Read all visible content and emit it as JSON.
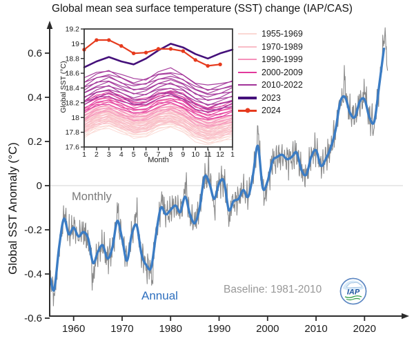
{
  "title": "Global mean sea surface temperature (SST) change (IAP/CAS)",
  "main_chart": {
    "ylabel": "Global SST Anomaly (°C)",
    "monthly_label": "Monthly",
    "annual_label": "Annual",
    "baseline_note": "Baseline: 1981-2010",
    "ytick_labels": [
      "0.6",
      "0.4",
      "0.2",
      "0",
      "-0.2",
      "-0.4",
      "-0.6"
    ],
    "ytick_values": [
      0.6,
      0.4,
      0.2,
      0,
      -0.2,
      -0.4,
      -0.6
    ],
    "xtick_labels": [
      "1960",
      "1970",
      "1980",
      "1990",
      "2000",
      "2010",
      "2020"
    ],
    "xtick_values": [
      1960,
      1970,
      1980,
      1990,
      2000,
      2010,
      2020
    ],
    "colors": {
      "annual": "#3b7cc4",
      "monthly": "#8a8a8a",
      "zero_line": "#dcdcdc",
      "axis": "#2b2b2b",
      "tick_text": "#1b1b1b"
    }
  },
  "chart_data": [
    {
      "id": "main",
      "type": "line",
      "ylabel": "Global SST Anomaly (°C)",
      "xlim": [
        1955,
        2025
      ],
      "ylim": [
        -0.6,
        0.72
      ],
      "xticks": [
        1960,
        1970,
        1980,
        1990,
        2000,
        2010,
        2020
      ],
      "yticks": [
        -0.6,
        -0.4,
        -0.2,
        0,
        0.2,
        0.4,
        0.6
      ],
      "grid": "zero-line-only",
      "series": [
        {
          "name": "Annual",
          "color": "#3b7cc4",
          "width": 3.4,
          "years": [
            1955,
            1956,
            1957,
            1958,
            1959,
            1960,
            1961,
            1962,
            1963,
            1964,
            1965,
            1966,
            1967,
            1968,
            1969,
            1970,
            1971,
            1972,
            1973,
            1974,
            1975,
            1976,
            1977,
            1978,
            1979,
            1980,
            1981,
            1982,
            1983,
            1984,
            1985,
            1986,
            1987,
            1988,
            1989,
            1990,
            1991,
            1992,
            1993,
            1994,
            1995,
            1996,
            1997,
            1998,
            1999,
            2000,
            2001,
            2002,
            2003,
            2004,
            2005,
            2006,
            2007,
            2008,
            2009,
            2010,
            2011,
            2012,
            2013,
            2014,
            2015,
            2016,
            2017,
            2018,
            2019,
            2020,
            2021,
            2022,
            2023,
            2024
          ],
          "values": [
            -0.42,
            -0.47,
            -0.28,
            -0.15,
            -0.22,
            -0.19,
            -0.23,
            -0.21,
            -0.24,
            -0.35,
            -0.3,
            -0.27,
            -0.33,
            -0.28,
            -0.16,
            -0.24,
            -0.34,
            -0.22,
            -0.18,
            -0.31,
            -0.36,
            -0.37,
            -0.22,
            -0.1,
            -0.13,
            -0.11,
            -0.09,
            -0.12,
            -0.05,
            -0.13,
            -0.17,
            -0.1,
            0.04,
            0.01,
            -0.06,
            0.01,
            0.02,
            -0.11,
            -0.07,
            -0.06,
            -0.02,
            -0.05,
            0.05,
            0.18,
            -0.01,
            0.02,
            0.11,
            0.13,
            0.14,
            0.12,
            0.13,
            0.15,
            0.07,
            0.05,
            0.13,
            0.16,
            0.09,
            0.12,
            0.17,
            0.25,
            0.38,
            0.4,
            0.33,
            0.31,
            0.38,
            0.39,
            0.31,
            0.29,
            0.45,
            0.62
          ]
        },
        {
          "name": "Monthly",
          "color": "#8a8a8a",
          "width": 1.1,
          "derivation": "annual-series plus monthly variability (synthesized to match visual amplitude)",
          "noise": {
            "amp1": 0.032,
            "amp2": 0.028,
            "amp3": 0.018,
            "hash_amp": 0.025,
            "sigma": 0.27
          },
          "spikes": [
            [
              1956.3,
              -0.05
            ],
            [
              1958.2,
              0.05
            ],
            [
              1964.0,
              -0.1
            ],
            [
              1969.0,
              0.05
            ],
            [
              1972.9,
              0.07
            ],
            [
              1976.2,
              -0.09
            ],
            [
              1978.3,
              0.05
            ],
            [
              1983.1,
              0.07
            ],
            [
              1987.9,
              0.07
            ],
            [
              1989.0,
              -0.06
            ],
            [
              1992.1,
              -0.06
            ],
            [
              1998.1,
              0.1
            ],
            [
              1999.5,
              -0.07
            ],
            [
              2015.9,
              0.07
            ],
            [
              2020.1,
              0.06
            ],
            [
              2022.0,
              -0.05
            ],
            [
              2024.1,
              0.08
            ],
            [
              2024.8,
              -0.09
            ]
          ],
          "start_year": 1955.0,
          "end_year": 2024.83,
          "clamp": [
            -0.575,
            0.715
          ]
        }
      ]
    },
    {
      "id": "inset",
      "type": "line",
      "ylabel": "Global SST (°C)",
      "xlabel": "Month",
      "ylim": [
        17.6,
        19.2
      ],
      "ytick_labels": [
        "19.2",
        "19",
        "18.8",
        "18.6",
        "18.4",
        "18.2",
        "18",
        "17.8",
        "17.6"
      ],
      "ytick_values": [
        19.2,
        19,
        18.8,
        18.6,
        18.4,
        18.2,
        18,
        17.8,
        17.6
      ],
      "xtick_labels": [
        "1",
        "2",
        "3",
        "4",
        "5",
        "6",
        "7",
        "8",
        "9",
        "10",
        "11",
        "12",
        "1"
      ],
      "seasonal_shape": [
        0,
        0.09,
        0.13,
        0.06,
        -0.01,
        0.01,
        0.1,
        0.13,
        0.07,
        -0.04,
        -0.1,
        -0.06,
        -0.01
      ],
      "groups": [
        {
          "label": "1955-1969",
          "color": "#fbd8d3",
          "count": 15,
          "jan_min": 17.73,
          "jan_max": 17.96,
          "width": 1
        },
        {
          "label": "1970-1989",
          "color": "#f9bcc6",
          "count": 20,
          "jan_min": 17.8,
          "jan_max": 18.04,
          "width": 1
        },
        {
          "label": "1990-1999",
          "color": "#f590bb",
          "count": 10,
          "jan_min": 17.96,
          "jan_max": 18.13,
          "width": 1
        },
        {
          "label": "2000-2009",
          "color": "#e2399c",
          "count": 10,
          "jan_min": 18.06,
          "jan_max": 18.24,
          "width": 1
        },
        {
          "label": "2010-2022",
          "color": "#a13298",
          "count": 13,
          "jan_min": 18.17,
          "jan_max": 18.52,
          "width": 1.2
        }
      ],
      "series_2023": {
        "label": "2023",
        "color": "#44107a",
        "width": 2.6,
        "values": [
          18.68,
          18.76,
          18.82,
          18.76,
          18.72,
          18.8,
          18.91,
          19.0,
          18.95,
          18.86,
          18.8,
          18.87,
          18.92
        ]
      },
      "series_2024": {
        "label": "2024",
        "color": "#e63b1e",
        "width": 2.2,
        "marker_radius": 2.7,
        "values": [
          18.92,
          19.05,
          19.05,
          18.97,
          18.87,
          18.88,
          18.93,
          18.93,
          18.9,
          18.78,
          18.7,
          18.72
        ]
      }
    }
  ],
  "legend": {
    "entries": [
      {
        "label": "1955-1969",
        "color": "#fbd8d3",
        "lw": 2,
        "marker": false
      },
      {
        "label": "1970-1989",
        "color": "#f9bcc6",
        "lw": 2,
        "marker": false
      },
      {
        "label": "1990-1999",
        "color": "#f590bb",
        "lw": 2,
        "marker": false
      },
      {
        "label": "2000-2009",
        "color": "#e2399c",
        "lw": 2,
        "marker": false
      },
      {
        "label": "2010-2022",
        "color": "#a13298",
        "lw": 2,
        "marker": false
      },
      {
        "label": "2023",
        "color": "#44107a",
        "lw": 3.5,
        "marker": false
      },
      {
        "label": "2024",
        "color": "#e63b1e",
        "lw": 2.5,
        "marker": true
      }
    ]
  },
  "logos": {
    "iap_text": "IAP"
  }
}
